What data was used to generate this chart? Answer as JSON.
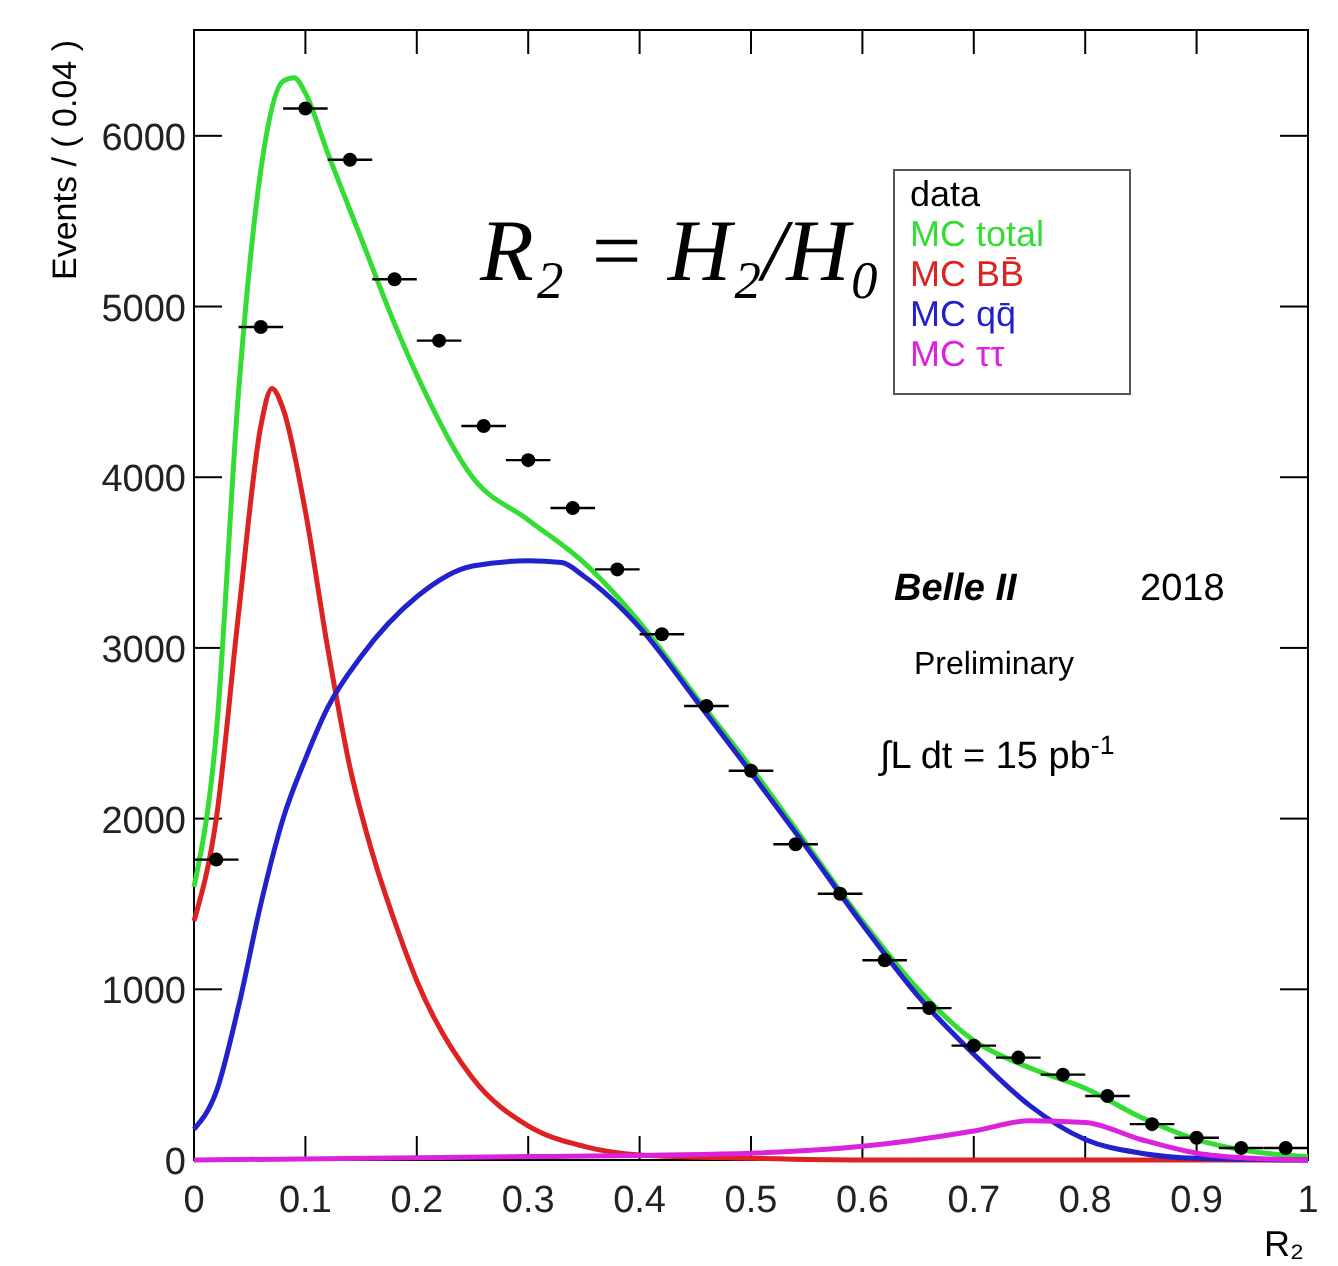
{
  "chart_data": {
    "type": "line",
    "xlabel": "R₂",
    "ylabel": "Events / ( 0.04 )",
    "xlim": [
      0,
      1
    ],
    "ylim": [
      0,
      6620
    ],
    "xticks": [
      0,
      0.1,
      0.2,
      0.3,
      0.4,
      0.5,
      0.6,
      0.7,
      0.8,
      0.9,
      1
    ],
    "yticks": [
      0,
      1000,
      2000,
      3000,
      4000,
      5000,
      6000
    ],
    "legend": "top right",
    "grid": false,
    "series": [
      {
        "name": "data",
        "type": "scatter",
        "marker": "circle",
        "color": "#000000",
        "x": [
          0.02,
          0.06,
          0.1,
          0.14,
          0.18,
          0.22,
          0.26,
          0.3,
          0.34,
          0.38,
          0.42,
          0.46,
          0.5,
          0.54,
          0.58,
          0.62,
          0.66,
          0.7,
          0.74,
          0.78,
          0.82,
          0.86,
          0.9,
          0.94,
          0.98
        ],
        "values": [
          1760,
          4880,
          6160,
          5860,
          5160,
          4800,
          4300,
          4100,
          3820,
          3460,
          3080,
          2660,
          2280,
          1850,
          1560,
          1170,
          890,
          670,
          600,
          500,
          375,
          210,
          130,
          70,
          70
        ],
        "xerrors": [
          0.02,
          0.02,
          0.02,
          0.02,
          0.02,
          0.02,
          0.02,
          0.02,
          0.02,
          0.02,
          0.02,
          0.02,
          0.02,
          0.02,
          0.02,
          0.02,
          0.02,
          0.02,
          0.02,
          0.02,
          0.02,
          0.02,
          0.02,
          0.02,
          0.02
        ]
      },
      {
        "name": "MC total",
        "color": "#33dd33",
        "x": [
          0,
          0.02,
          0.04,
          0.06,
          0.08,
          0.09,
          0.1,
          0.12,
          0.15,
          0.18,
          0.2,
          0.25,
          0.3,
          0.35,
          0.4,
          0.45,
          0.5,
          0.55,
          0.6,
          0.65,
          0.7,
          0.75,
          0.8,
          0.85,
          0.9,
          0.95,
          1
        ],
        "values": [
          1600,
          2500,
          4500,
          5800,
          6320,
          6340,
          6250,
          5900,
          5400,
          4900,
          4600,
          4000,
          3750,
          3500,
          3150,
          2720,
          2300,
          1850,
          1400,
          1000,
          700,
          540,
          420,
          250,
          120,
          50,
          20
        ]
      },
      {
        "name": "MC BB̄",
        "color": "#dd2222",
        "x": [
          0,
          0.02,
          0.04,
          0.06,
          0.07,
          0.08,
          0.1,
          0.12,
          0.14,
          0.16,
          0.18,
          0.2,
          0.25,
          0.3,
          0.35,
          0.4,
          0.5,
          0.6,
          1
        ],
        "values": [
          1400,
          2000,
          3200,
          4300,
          4520,
          4400,
          3800,
          3000,
          2300,
          1800,
          1400,
          1050,
          480,
          200,
          80,
          30,
          10,
          0,
          0
        ]
      },
      {
        "name": "MC qq̄",
        "color": "#2222cc",
        "x": [
          0,
          0.02,
          0.04,
          0.06,
          0.08,
          0.1,
          0.12,
          0.15,
          0.2,
          0.25,
          0.3,
          0.33,
          0.35,
          0.4,
          0.45,
          0.5,
          0.55,
          0.6,
          0.65,
          0.7,
          0.75,
          0.8,
          0.85,
          0.9,
          1
        ],
        "values": [
          180,
          400,
          900,
          1500,
          2000,
          2350,
          2650,
          2950,
          3300,
          3480,
          3510,
          3500,
          3420,
          3120,
          2700,
          2270,
          1830,
          1380,
          960,
          620,
          320,
          120,
          40,
          10,
          0
        ]
      },
      {
        "name": "MC ττ",
        "color": "#dd22dd",
        "x": [
          0,
          0.3,
          0.5,
          0.6,
          0.7,
          0.75,
          0.8,
          0.85,
          0.9,
          0.95,
          1
        ],
        "values": [
          0,
          20,
          40,
          80,
          170,
          230,
          220,
          120,
          40,
          10,
          0
        ]
      }
    ],
    "annotations": [
      "R₂ = H₂/H₀",
      "Belle II",
      "2018",
      "Preliminary",
      "∫L dt = 15 pb$^{-1}$"
    ]
  }
}
